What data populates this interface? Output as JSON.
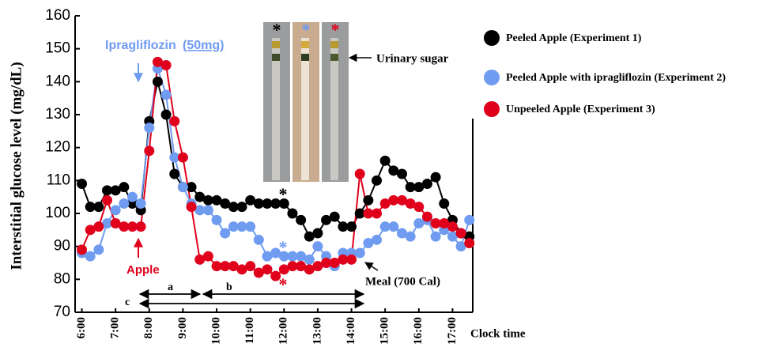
{
  "chart_data": {
    "type": "line",
    "y_label": "Interstitial glucose level (mg/dL)",
    "x_label": "Clock time",
    "x": [
      6,
      6.25,
      6.5,
      6.75,
      7,
      7.25,
      7.5,
      7.75,
      8,
      8.25,
      8.5,
      8.75,
      9,
      9.25,
      9.5,
      9.75,
      10,
      10.25,
      10.5,
      10.75,
      11,
      11.25,
      11.5,
      11.75,
      12,
      12.25,
      12.5,
      12.75,
      13,
      13.25,
      13.5,
      13.75,
      14,
      14.25,
      14.5,
      14.75,
      15,
      15.25,
      15.5,
      15.75,
      16,
      16.25,
      16.5,
      16.75,
      17,
      17.25,
      17.5
    ],
    "series": [
      {
        "name": "Peeled Apple (Experiment 1)",
        "color": "#000000",
        "values": [
          109,
          102,
          102,
          107,
          107,
          108,
          103,
          101,
          128,
          140,
          130,
          112,
          108,
          108,
          105,
          104,
          104,
          103,
          102,
          102,
          104,
          103,
          103,
          103,
          103,
          100,
          98,
          93,
          94,
          98,
          99,
          96,
          96,
          100,
          104,
          110,
          116,
          113,
          112,
          108,
          108,
          109,
          111,
          103,
          98,
          94,
          93
        ]
      },
      {
        "name": "Peeled Apple with ipragliflozin (Experiment 2)",
        "color": "#6f9bf0",
        "values": [
          88,
          87,
          89,
          97,
          101,
          103,
          105,
          103,
          126,
          144,
          136,
          117,
          108,
          103,
          101,
          101,
          98,
          94,
          96,
          96,
          96,
          92,
          87,
          88,
          87,
          87,
          87,
          86,
          90,
          87,
          84,
          88,
          88,
          88,
          91,
          92,
          96,
          96,
          94,
          93,
          97,
          98,
          93,
          95,
          93,
          90,
          98
        ]
      },
      {
        "name": "Unpeeled Apple (Experiment 3)",
        "color": "#e0001b",
        "values": [
          89,
          95,
          96,
          104,
          97,
          96,
          96,
          96,
          119,
          146,
          145,
          128,
          117,
          102,
          86,
          87,
          84,
          84,
          84,
          83,
          84,
          82,
          83,
          81,
          83,
          84,
          84,
          83,
          84,
          85,
          85,
          86,
          86,
          112,
          100,
          100,
          103,
          104,
          104,
          103,
          102,
          99,
          97,
          97,
          96,
          94,
          91
        ]
      }
    ],
    "xlim": [
      5.8,
      17.6
    ],
    "xticks": [
      {
        "value": 6,
        "label": "6:00"
      },
      {
        "value": 7,
        "label": "7:00"
      },
      {
        "value": 8,
        "label": "8:00"
      },
      {
        "value": 9,
        "label": "9:00"
      },
      {
        "value": 10,
        "label": "10:00"
      },
      {
        "value": 11,
        "label": "11:00"
      },
      {
        "value": 12,
        "label": "12:00"
      },
      {
        "value": 13,
        "label": "13:00"
      },
      {
        "value": 14,
        "label": "14:00"
      },
      {
        "value": 15,
        "label": "15:00"
      },
      {
        "value": 16,
        "label": "16:00"
      },
      {
        "value": 17,
        "label": "17:00"
      }
    ],
    "ylim": [
      70,
      160
    ],
    "yticks": [
      70,
      80,
      90,
      100,
      110,
      120,
      130,
      140,
      150,
      160
    ],
    "legend": "right",
    "annotations": {
      "drug": "Ipragliflozin",
      "dose": "(50mg)",
      "apple": "Apple",
      "meal": "Meal (700 Cal)",
      "urinary_sugar": "Urinary sugar",
      "a": "a",
      "b": "b",
      "c": "c",
      "asterisk": "*"
    }
  }
}
